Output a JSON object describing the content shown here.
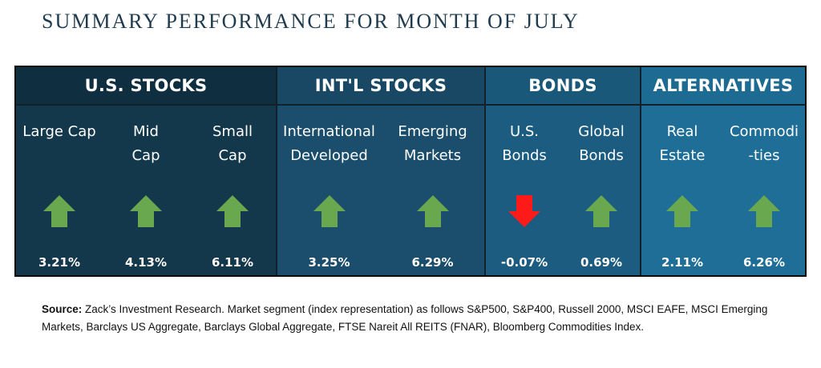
{
  "title": "SUMMARY PERFORMANCE FOR MONTH OF JULY",
  "colors": {
    "up": "#6aa84f",
    "down": "#ff1a1a"
  },
  "groups": [
    {
      "name": "U.S. STOCKS",
      "items": [
        {
          "label": "Large Cap",
          "direction": "up",
          "value": "3.21%"
        },
        {
          "label": "Mid\nCap",
          "direction": "up",
          "value": "4.13%"
        },
        {
          "label": "Small\nCap",
          "direction": "up",
          "value": "6.11%"
        }
      ]
    },
    {
      "name": "INT'L STOCKS",
      "items": [
        {
          "label": "International\nDeveloped",
          "direction": "up",
          "value": "3.25%"
        },
        {
          "label": "Emerging\nMarkets",
          "direction": "up",
          "value": "6.29%"
        }
      ]
    },
    {
      "name": "BONDS",
      "items": [
        {
          "label": "U.S.\nBonds",
          "direction": "down",
          "value": "-0.07%"
        },
        {
          "label": "Global\nBonds",
          "direction": "up",
          "value": "0.69%"
        }
      ]
    },
    {
      "name": "ALTERNATIVES",
      "items": [
        {
          "label": "Real\nEstate",
          "direction": "up",
          "value": "2.11%"
        },
        {
          "label": "Commodi\n-ties",
          "direction": "up",
          "value": "6.26%"
        }
      ]
    }
  ],
  "source": {
    "label": "Source:",
    "text": " Zack’s Investment Research. Market segment (index representation) as follows S&P500, S&P400, Russell 2000, MSCI EAFE, MSCI Emerging Markets, Barclays US Aggregate, Barclays Global Aggregate, FTSE Nareit All REITS (FNAR), Bloomberg Commodities Index."
  }
}
